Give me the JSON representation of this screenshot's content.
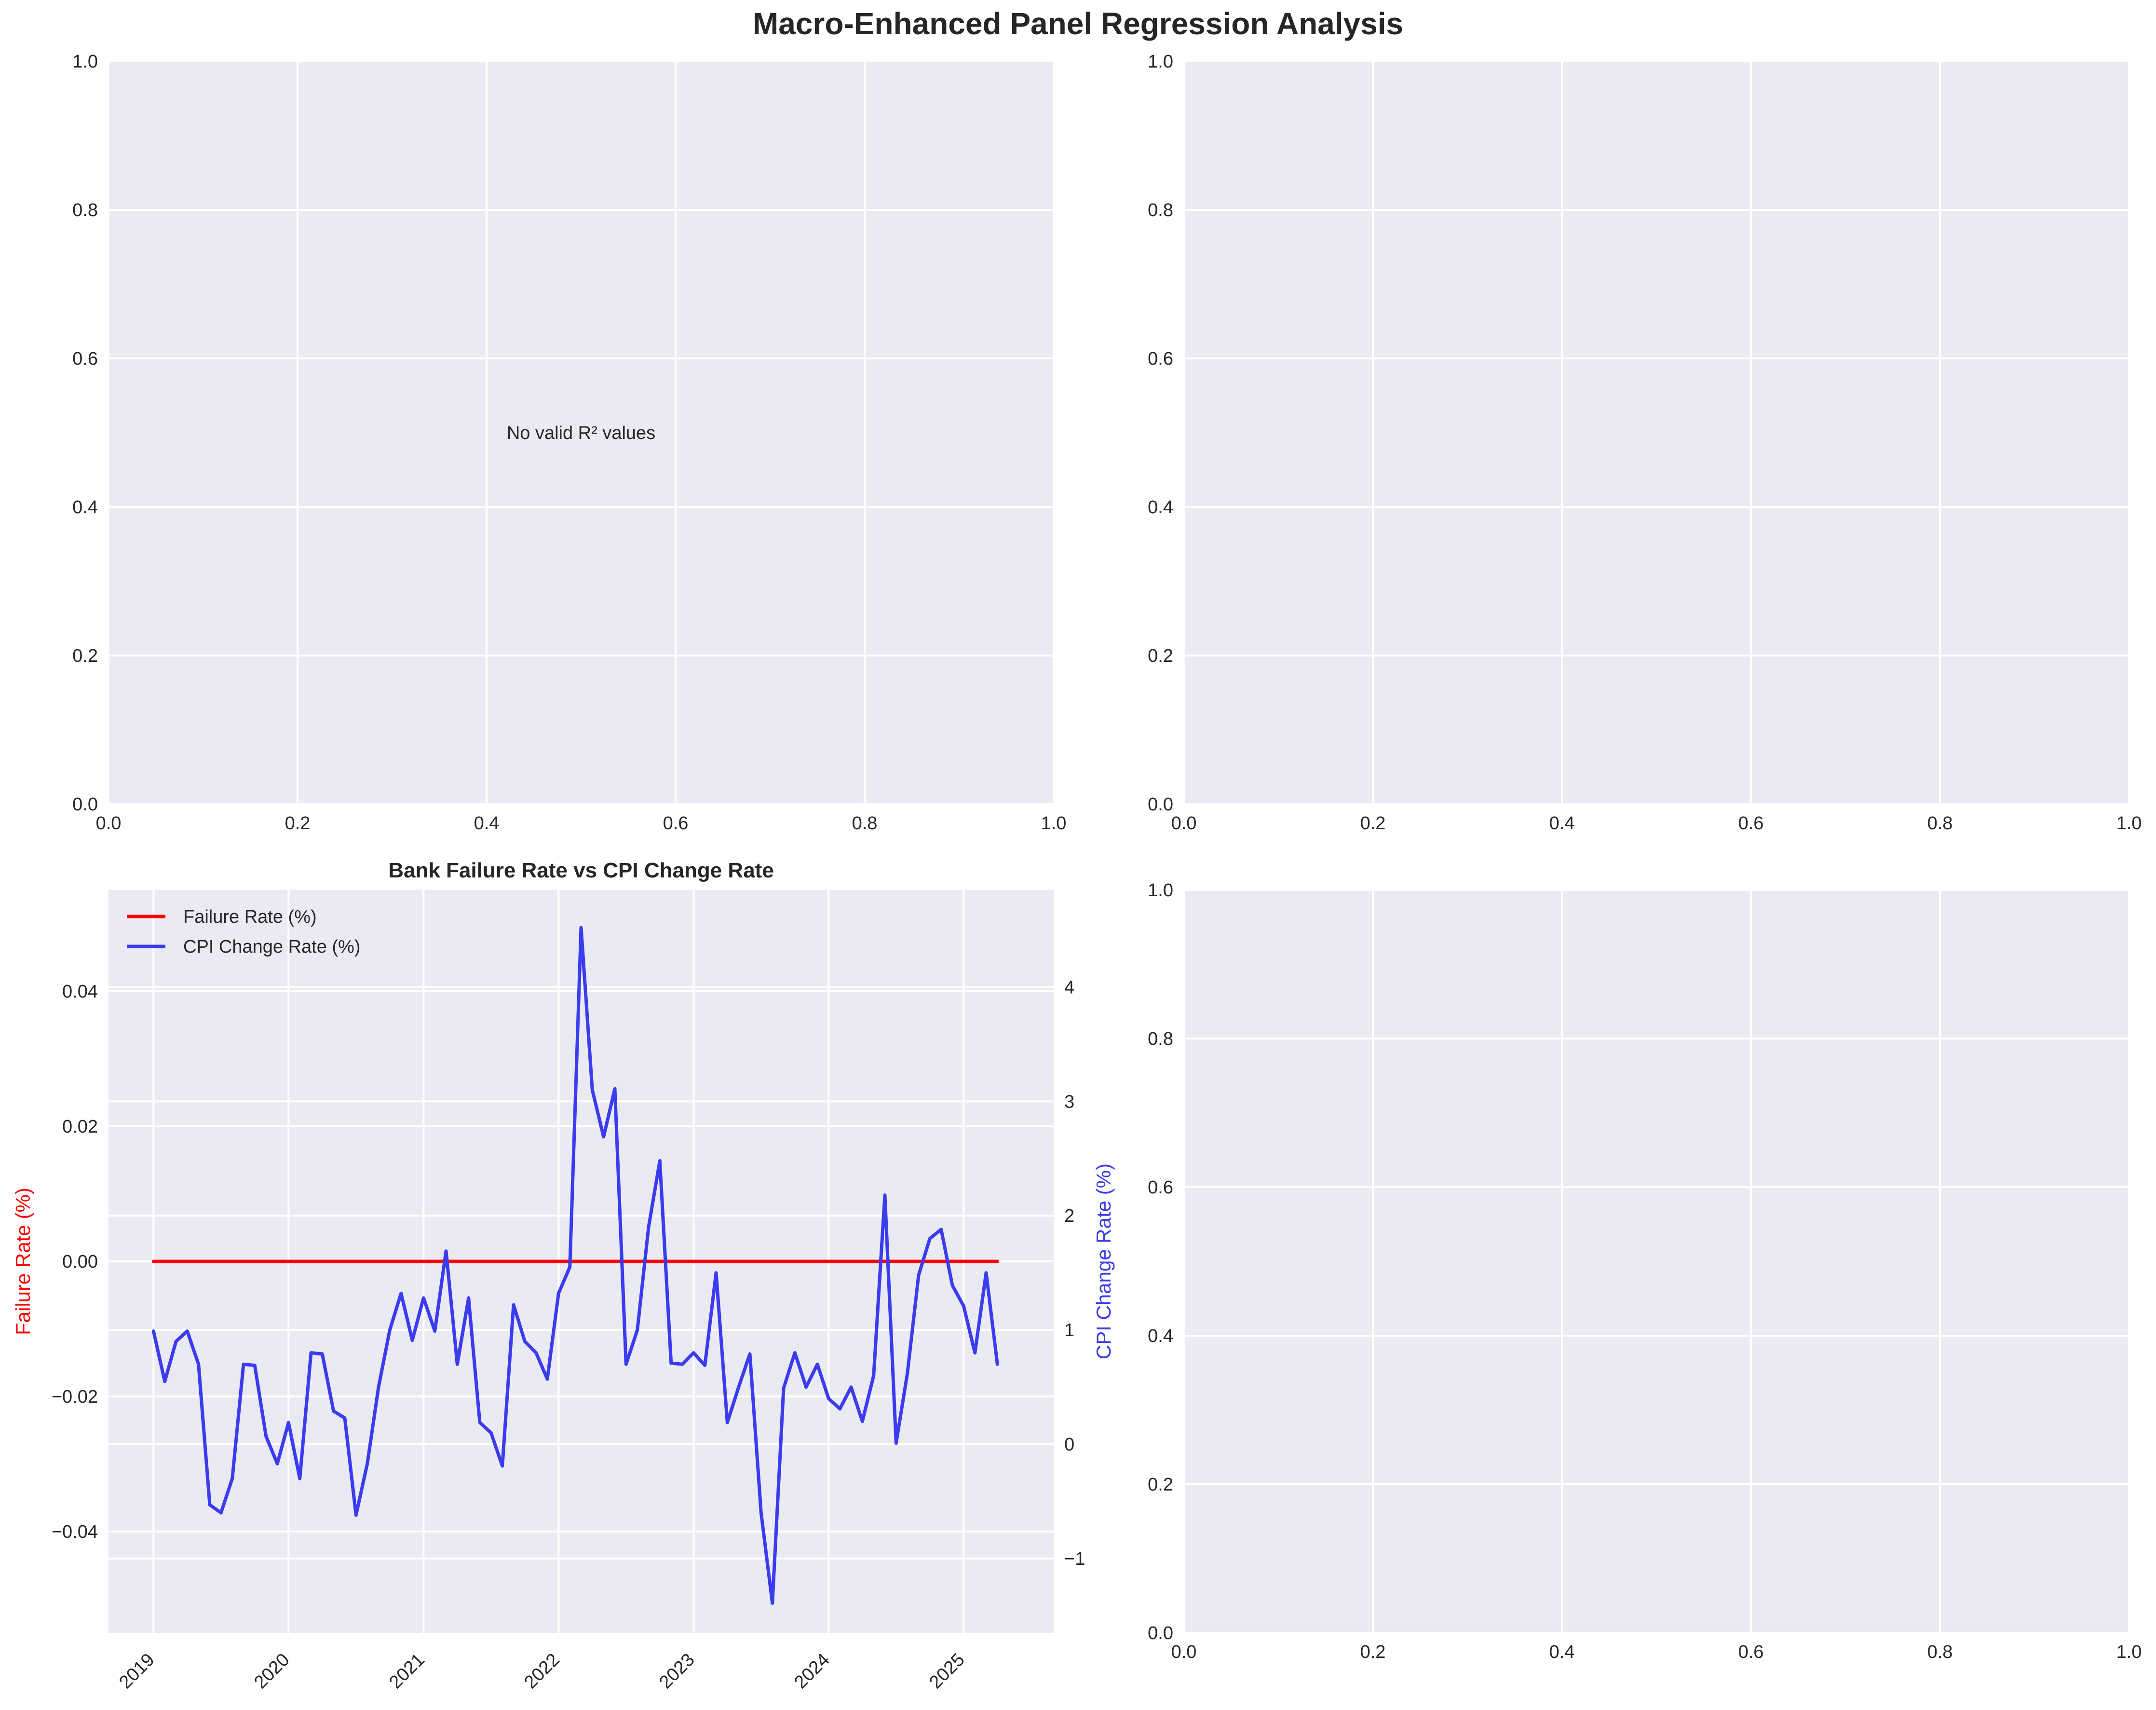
{
  "figure": {
    "title": "Macro-Enhanced Panel Regression Analysis"
  },
  "colors": {
    "axes_bg": "#eaeaf2",
    "grid": "#ffffff",
    "text": "#262626",
    "failure": "#ff0000",
    "cpi": "#3b3bf0"
  },
  "chart_data": [
    {
      "type": "placeholder",
      "title": "",
      "xlim": [
        0,
        1
      ],
      "ylim": [
        0,
        1
      ],
      "grid": true,
      "x_ticks": [
        "0.0",
        "0.2",
        "0.4",
        "0.6",
        "0.8",
        "1.0"
      ],
      "y_ticks": [
        "0.0",
        "0.2",
        "0.4",
        "0.6",
        "0.8",
        "1.0"
      ],
      "annotation": {
        "text": "No valid R² values",
        "x": 0.5,
        "y": 0.5
      }
    },
    {
      "type": "placeholder",
      "title": "",
      "xlim": [
        0,
        1
      ],
      "ylim": [
        0,
        1
      ],
      "grid": true,
      "x_ticks": [
        "0.0",
        "0.2",
        "0.4",
        "0.6",
        "0.8",
        "1.0"
      ],
      "y_ticks": [
        "0.0",
        "0.2",
        "0.4",
        "0.6",
        "0.8",
        "1.0"
      ]
    },
    {
      "type": "line",
      "title": "Bank Failure Rate vs CPI Change Rate",
      "xlabel": "",
      "ylabel": "Failure Rate (%)",
      "ylabel_right": "CPI Change Rate (%)",
      "xlim": [
        "2018-09",
        "2025-09"
      ],
      "ylim": [
        -0.055,
        0.055
      ],
      "ylim_right": [
        -1.65,
        4.85
      ],
      "x_tick_labels": [
        "2019",
        "2020",
        "2021",
        "2022",
        "2023",
        "2024",
        "2025"
      ],
      "y_tick_labels": [
        "−0.04",
        "−0.02",
        "0.00",
        "0.02",
        "0.04"
      ],
      "y_tick_values": [
        -0.04,
        -0.02,
        0.0,
        0.02,
        0.04
      ],
      "y_right_tick_labels": [
        "−1",
        "0",
        "1",
        "2",
        "3",
        "4"
      ],
      "y_right_tick_values": [
        -1,
        0,
        1,
        2,
        3,
        4
      ],
      "legend": {
        "position": "upper-left",
        "entries": [
          "Failure Rate (%)",
          "CPI Change Rate (%)"
        ]
      },
      "grid": true,
      "series": [
        {
          "name": "Failure Rate (%)",
          "axis": "left",
          "x": [
            "2019-01",
            "2025-04"
          ],
          "values": [
            0.0,
            0.0
          ]
        },
        {
          "name": "CPI Change Rate (%)",
          "axis": "right",
          "x": [
            "2019-01",
            "2019-02",
            "2019-03",
            "2019-04",
            "2019-05",
            "2019-06",
            "2019-07",
            "2019-08",
            "2019-09",
            "2019-10",
            "2019-11",
            "2019-12",
            "2020-01",
            "2020-02",
            "2020-03",
            "2020-04",
            "2020-05",
            "2020-06",
            "2020-07",
            "2020-08",
            "2020-09",
            "2020-10",
            "2020-11",
            "2020-12",
            "2021-01",
            "2021-02",
            "2021-03",
            "2021-04",
            "2021-05",
            "2021-06",
            "2021-07",
            "2021-08",
            "2021-09",
            "2021-10",
            "2021-11",
            "2021-12",
            "2022-01",
            "2022-02",
            "2022-03",
            "2022-04",
            "2022-05",
            "2022-06",
            "2022-07",
            "2022-08",
            "2022-09",
            "2022-10",
            "2022-11",
            "2022-12",
            "2023-01",
            "2023-02",
            "2023-03",
            "2023-04",
            "2023-05",
            "2023-06",
            "2023-07",
            "2023-08",
            "2023-09",
            "2023-10",
            "2023-11",
            "2023-12",
            "2024-01",
            "2024-02",
            "2024-03",
            "2024-04",
            "2024-05",
            "2024-06",
            "2024-07",
            "2024-08",
            "2024-09",
            "2024-10",
            "2024-11",
            "2024-12",
            "2025-01",
            "2025-02",
            "2025-03",
            "2025-04"
          ],
          "values": [
            0.99,
            0.55,
            0.9,
            0.99,
            0.7,
            -0.53,
            -0.6,
            -0.3,
            0.7,
            0.69,
            0.07,
            -0.17,
            0.19,
            -0.3,
            0.8,
            0.79,
            0.29,
            0.23,
            -0.62,
            -0.17,
            0.5,
            1.0,
            1.32,
            0.91,
            1.28,
            0.99,
            1.69,
            0.7,
            1.28,
            0.19,
            0.1,
            -0.19,
            1.22,
            0.9,
            0.8,
            0.57,
            1.32,
            1.55,
            4.52,
            3.1,
            2.69,
            3.11,
            0.7,
            1.0,
            1.9,
            2.48,
            0.71,
            0.7,
            0.8,
            0.69,
            1.5,
            0.19,
            0.5,
            0.79,
            -0.6,
            -1.39,
            0.49,
            0.8,
            0.5,
            0.7,
            0.4,
            0.31,
            0.5,
            0.2,
            0.6,
            2.18,
            0.01,
            0.62,
            1.48,
            1.8,
            1.88,
            1.39,
            1.21,
            0.8,
            1.5,
            0.7
          ]
        }
      ]
    },
    {
      "type": "placeholder",
      "title": "",
      "xlim": [
        0,
        1
      ],
      "ylim": [
        0,
        1
      ],
      "grid": true,
      "x_ticks": [
        "0.0",
        "0.2",
        "0.4",
        "0.6",
        "0.8",
        "1.0"
      ],
      "y_ticks": [
        "0.0",
        "0.2",
        "0.4",
        "0.6",
        "0.8",
        "1.0"
      ]
    }
  ]
}
